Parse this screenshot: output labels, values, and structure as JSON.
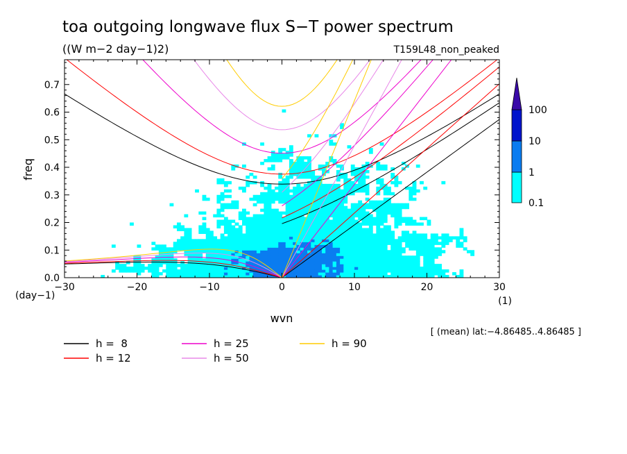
{
  "chart_data": {
    "type": "heatmap",
    "title": "toa outgoing longwave flux S−T power spectrum",
    "subtitle": "((W m−2 day−1)2)",
    "experiment": "T159L48_non_peaked",
    "xlabel": "wvn",
    "ylabel": "freq",
    "x_unit": "(1)",
    "y_unit": "(day−1)",
    "xlim": [
      -30,
      30
    ],
    "ylim": [
      0,
      0.79
    ],
    "xticks": [
      -30,
      -20,
      -10,
      0,
      10,
      20,
      30
    ],
    "xtick_labels": [
      "−30",
      "−20",
      "−10",
      "0",
      "10",
      "20",
      "30"
    ],
    "yticks": [
      0.0,
      0.1,
      0.2,
      0.3,
      0.4,
      0.5,
      0.6,
      0.7
    ],
    "ytick_labels": [
      "0.0",
      "0.1",
      "0.2",
      "0.3",
      "0.4",
      "0.5",
      "0.6",
      "0.7"
    ],
    "note": "[ (mean) lat:−4.86485..4.86485 ]",
    "colorbar": {
      "levels": [
        0.1,
        1,
        10,
        100
      ],
      "labels": [
        "0.1",
        "1",
        "10",
        "100"
      ],
      "colors": [
        "#00ffff",
        "#0a7cf0",
        "#0014cc",
        "#3a0aa8"
      ],
      "extend": "max"
    },
    "dispersion_curves": [
      {
        "label": "h =  8",
        "h": 8,
        "color": "#000000"
      },
      {
        "label": "h = 12",
        "h": 12,
        "color": "#ff0000"
      },
      {
        "label": "h = 25",
        "h": 25,
        "color": "#ee00cc"
      },
      {
        "label": "h = 50",
        "h": 50,
        "color": "#e888e8"
      },
      {
        "label": "h = 90",
        "h": 90,
        "color": "#ffcc00"
      }
    ]
  }
}
